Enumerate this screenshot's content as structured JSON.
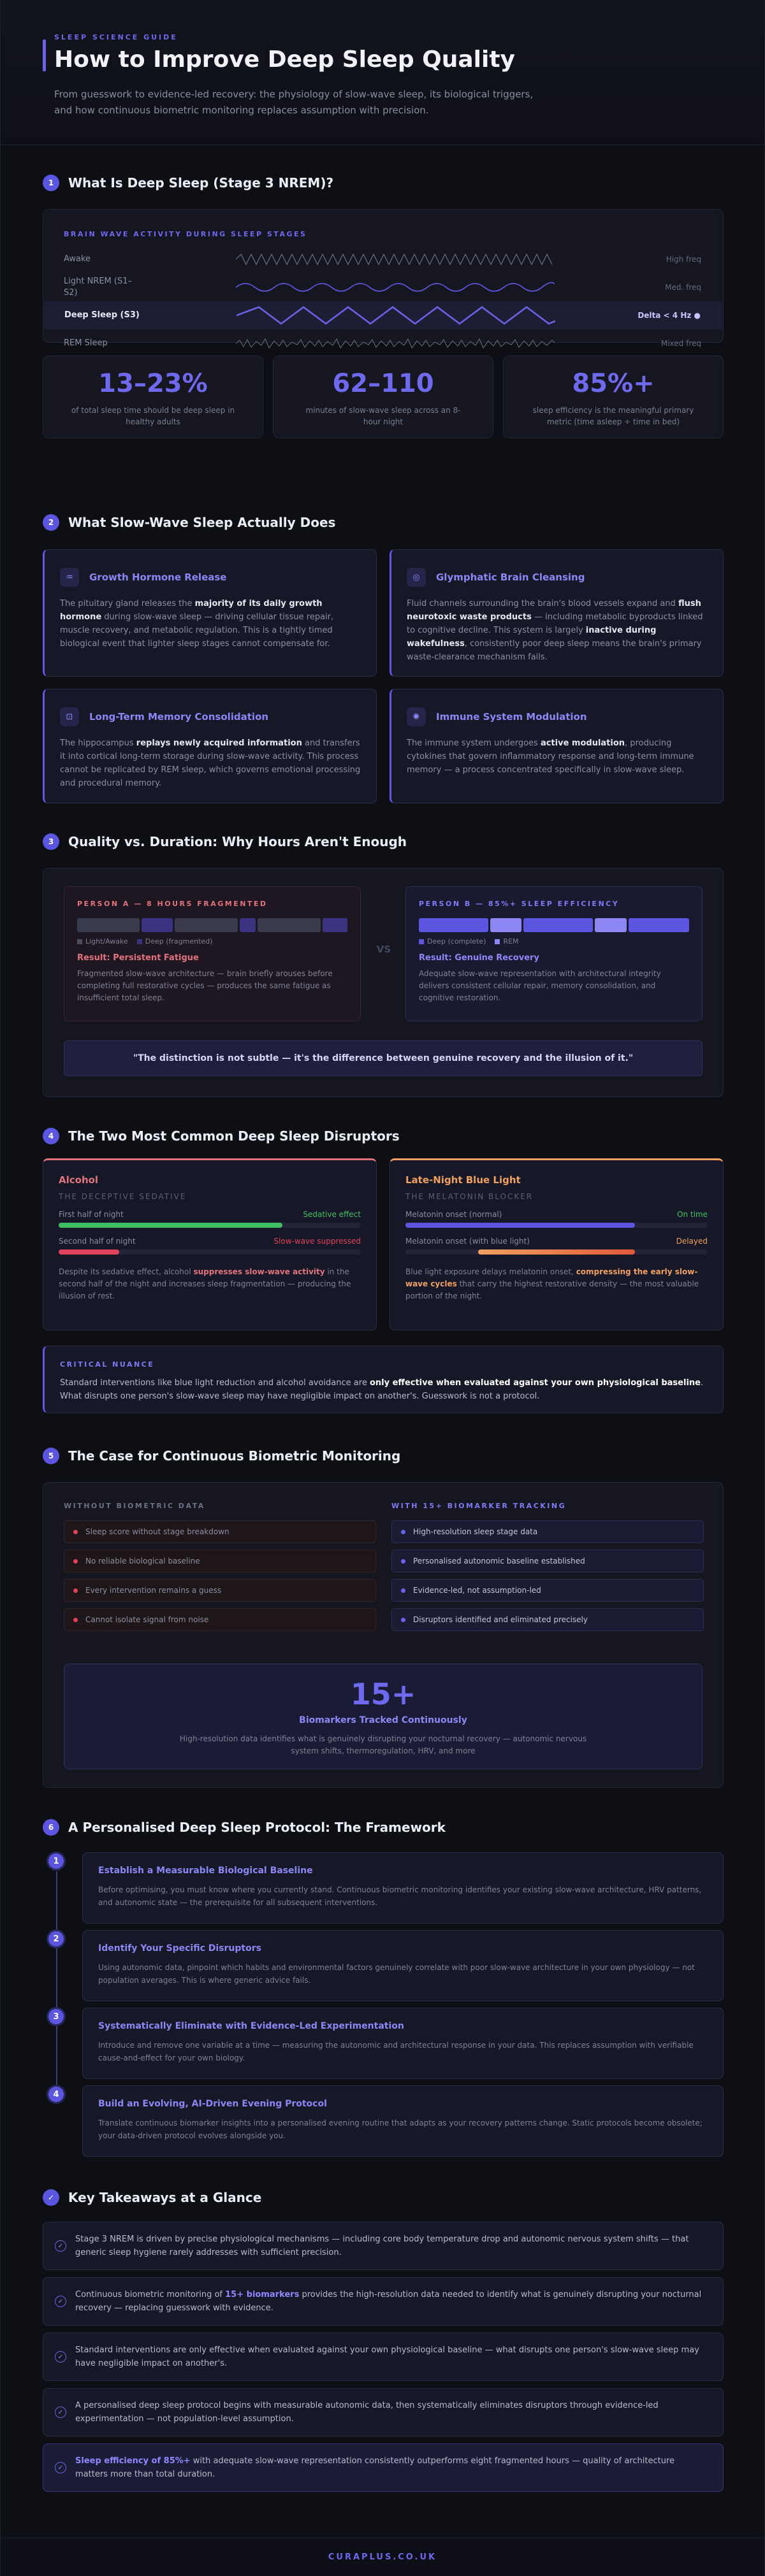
{
  "hero": {
    "eyebrow": "SLEEP SCIENCE GUIDE",
    "title": "How to Improve Deep Sleep Quality",
    "intro": "From guesswork to evidence-led recovery: the physiology of slow-wave sleep, its biological triggers, and how continuous biometric monitoring replaces assumption with precision."
  },
  "s1": {
    "num": "1",
    "title": "What Is Deep Sleep (Stage 3 NREM)?",
    "panel_label": "BRAIN WAVE ACTIVITY DURING SLEEP STAGES",
    "waves": [
      {
        "name": "Awake",
        "freq": "High freq"
      },
      {
        "name": "Light NREM (S1–S2)",
        "freq": "Med. freq"
      },
      {
        "name": "Deep Sleep (S3)",
        "freq": "Delta < 4 Hz ●"
      },
      {
        "name": "REM Sleep",
        "freq": "Mixed freq"
      }
    ],
    "stats": [
      {
        "num": "13–23%",
        "desc": "of total sleep time should be deep sleep in healthy adults"
      },
      {
        "num": "62–110",
        "desc": "minutes of slow-wave sleep across an 8-hour night"
      },
      {
        "num": "85%+",
        "desc": "sleep efficiency is the meaningful primary metric (time asleep ÷ time in bed)"
      }
    ]
  },
  "s2": {
    "num": "2",
    "title": "What Slow-Wave Sleep Actually Does",
    "cards": [
      {
        "title": "Growth Hormone Release",
        "icon": "♒"
      },
      {
        "title": "Glymphatic Brain Cleansing",
        "icon": "◎"
      },
      {
        "title": "Long-Term Memory Consolidation",
        "icon": "⊡"
      },
      {
        "title": "Immune System Modulation",
        "icon": "✺"
      }
    ],
    "card_text": {
      "gh_a": "The pituitary gland releases the ",
      "gh_b": "majority of its daily growth hormone",
      "gh_c": " during slow-wave sleep — driving cellular tissue repair, muscle recovery, and metabolic regulation. This is a tightly timed biological event that lighter sleep stages cannot compensate for.",
      "gl_a": "Fluid channels surrounding the brain's blood vessels expand and ",
      "gl_b": "flush neurotoxic waste products",
      "gl_c": " — including metabolic byproducts linked to cognitive decline. This system is largely ",
      "gl_d": "inactive during wakefulness",
      "gl_e": ", consistently poor deep sleep means the brain's primary waste-clearance mechanism fails.",
      "mem_a": "The hippocampus ",
      "mem_b": "replays newly acquired information",
      "mem_c": " and transfers it into cortical long-term storage during slow-wave activity. This process cannot be replicated by REM sleep, which governs emotional processing and procedural memory.",
      "imm_a": "The immune system undergoes ",
      "imm_b": "active modulation",
      "imm_c": ", producing cytokines that govern inflammatory response and long-term immune memory — a process concentrated specifically in slow-wave sleep."
    }
  },
  "s3": {
    "num": "3",
    "title": "Quality vs. Duration: Why Hours Aren't Enough",
    "a_label": "PERSON A — 8 HOURS FRAGMENTED",
    "a_legend": [
      "Light/Awake",
      "Deep (fragmented)"
    ],
    "a_result": "Result: Persistent Fatigue",
    "a_desc": "Fragmented slow-wave architecture — brain briefly arouses before completing full restorative cycles — produces the same fatigue as insufficient total sleep.",
    "vs": "VS",
    "b_label": "PERSON B — 85%+ SLEEP EFFICIENCY",
    "b_legend": [
      "Deep (complete)",
      "REM"
    ],
    "b_result": "Result: Genuine Recovery",
    "b_desc": "Adequate slow-wave representation with architectural integrity delivers consistent cellular repair, memory consolidation, and cognitive restoration.",
    "quote": "\"The distinction is not subtle — it's the difference between genuine recovery and the illusion of it.\""
  },
  "s4": {
    "num": "4",
    "title": "The Two Most Common Deep Sleep Disruptors",
    "alcohol": {
      "title": "Alcohol",
      "sub": "THE DECEPTIVE SEDATIVE",
      "bar1_label": "First half of night",
      "bar1_status": "Sedative effect",
      "bar2_label": "Second half of night",
      "bar2_status": "Slow-wave suppressed",
      "desc_a": "Despite its sedative effect, alcohol ",
      "desc_b": "suppresses slow-wave activity",
      "desc_c": " in the second half of the night and increases sleep fragmentation — producing the illusion of rest."
    },
    "light": {
      "title": "Late-Night Blue Light",
      "sub": "THE MELATONIN BLOCKER",
      "bar1_label": "Melatonin onset (normal)",
      "bar1_status": "On time",
      "bar2_label": "Melatonin onset (with blue light)",
      "bar2_status": "Delayed",
      "desc_a": "Blue light exposure delays melatonin onset, ",
      "desc_b": "compressing the early slow-wave cycles",
      "desc_c": " that carry the highest restorative density — the most valuable portion of the night."
    },
    "nuance_label": "CRITICAL NUANCE",
    "nuance_a": "Standard interventions like blue light reduction and alcohol avoidance are ",
    "nuance_b": "only effective when evaluated against your own physiological baseline",
    "nuance_c": ". What disrupts one person's slow-wave sleep may have negligible impact on another's. Guesswork is not a protocol."
  },
  "s5": {
    "num": "5",
    "title": "The Case for Continuous Biometric Monitoring",
    "without_label": "WITHOUT BIOMETRIC DATA",
    "without_items": [
      "Sleep score without stage breakdown",
      "No reliable biological baseline",
      "Every intervention remains a guess",
      "Cannot isolate signal from noise"
    ],
    "with_label": "WITH 15+ BIOMARKER TRACKING",
    "with_items": [
      "High-resolution sleep stage data",
      "Personalised autonomic baseline established",
      "Evidence-led, not assumption-led",
      "Disruptors identified and eliminated precisely"
    ],
    "big_num": "15+",
    "big_label": "Biomarkers Tracked Continuously",
    "big_desc": "High-resolution data identifies what is genuinely disrupting your nocturnal recovery — autonomic nervous system shifts, thermoregulation, HRV, and more"
  },
  "s6": {
    "num": "6",
    "title": "A Personalised Deep Sleep Protocol: The Framework",
    "steps": [
      {
        "n": "1",
        "title": "Establish a Measurable Biological Baseline",
        "desc": "Before optimising, you must know where you currently stand. Continuous biometric monitoring identifies your existing slow-wave architecture, HRV patterns, and autonomic state — the prerequisite for all subsequent interventions."
      },
      {
        "n": "2",
        "title": "Identify Your Specific Disruptors",
        "desc": "Using autonomic data, pinpoint which habits and environmental factors genuinely correlate with poor slow-wave architecture in your own physiology — not population averages. This is where generic advice fails."
      },
      {
        "n": "3",
        "title": "Systematically Eliminate with Evidence-Led Experimentation",
        "desc": "Introduce and remove one variable at a time — measuring the autonomic and architectural response in your data. This replaces assumption with verifiable cause-and-effect for your own biology."
      },
      {
        "n": "4",
        "title": "Build an Evolving, AI-Driven Evening Protocol",
        "desc": "Translate continuous biomarker insights into a personalised evening routine that adapts as your recovery patterns change. Static protocols become obsolete; your data-driven protocol evolves alongside you."
      }
    ]
  },
  "s7": {
    "icon": "✓",
    "title": "Key Takeaways at a Glance",
    "t1": "Stage 3 NREM is driven by precise physiological mechanisms — including core body temperature drop and autonomic nervous system shifts — that generic sleep hygiene rarely addresses with sufficient precision.",
    "t2_a": "Continuous biometric monitoring of ",
    "t2_b": "15+ biomarkers",
    "t2_c": " provides the high-resolution data needed to identify what is genuinely disrupting your nocturnal recovery — replacing guesswork with evidence.",
    "t3": "Standard interventions are only effective when evaluated against your own physiological baseline — what disrupts one person's slow-wave sleep may have negligible impact on another's.",
    "t4": "A personalised deep sleep protocol begins with measurable autonomic data, then systematically eliminates disruptors through evidence-led experimentation — not population-level assumption.",
    "t5_a": "Sleep efficiency of 85%+",
    "t5_b": " with adequate slow-wave representation consistently outperforms eight fragmented hours — quality of architecture matters more than total duration."
  },
  "footer": {
    "brand": "CURAPLUS.CO.UK"
  },
  "colors": {
    "accent": "#6a63e8",
    "alcohol": "#e0737e",
    "light": "#f0a060",
    "good": "#3fbf62",
    "bad": "#e0415a"
  }
}
